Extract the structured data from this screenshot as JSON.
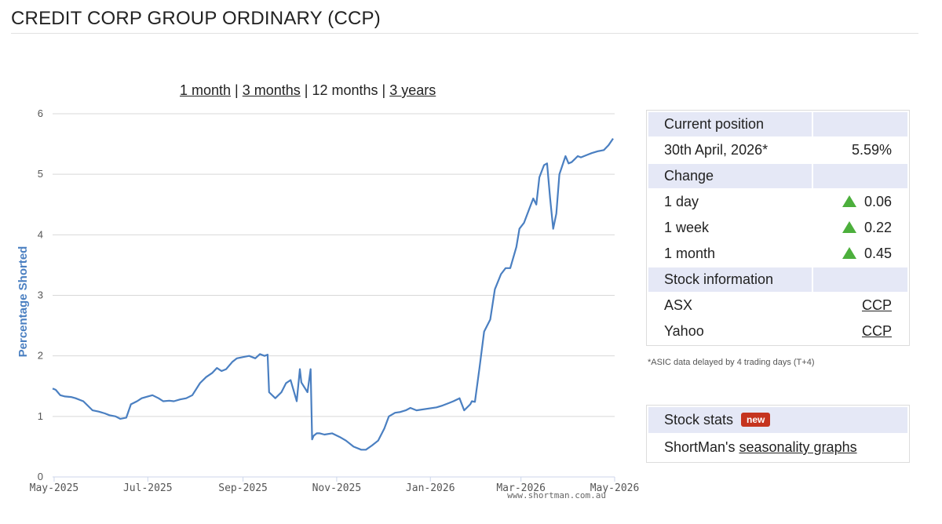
{
  "page": {
    "title": "CREDIT CORP GROUP ORDINARY (CCP)"
  },
  "range_selector": {
    "options": [
      {
        "label": "1 month",
        "link": true
      },
      {
        "label": "3 months",
        "link": true
      },
      {
        "label": "12 months",
        "link": false
      },
      {
        "label": "3 years",
        "link": true
      }
    ],
    "separator": "|"
  },
  "chart_data": {
    "type": "line",
    "title": "",
    "xlabel": "",
    "ylabel": "Percentage Shorted",
    "ylim": [
      0,
      6
    ],
    "yticks": [
      "0",
      "1",
      "2",
      "3",
      "4",
      "5",
      "6"
    ],
    "xticks": [
      "May-2025",
      "Jul-2025",
      "Sep-2025",
      "Nov-2025",
      "Jan-2026",
      "Mar-2026",
      "May-2026"
    ],
    "xlim": [
      "2025-04-30",
      "2026-05-01"
    ],
    "grid": true,
    "line_color": "#4a7fc1",
    "watermark": "www.shortman.com.au",
    "series": [
      {
        "x": [
          "2025-04-30",
          "2025-05-02",
          "2025-05-05",
          "2025-05-08",
          "2025-05-12",
          "2025-05-15",
          "2025-05-20",
          "2025-05-26",
          "2025-05-30",
          "2025-06-03",
          "2025-06-06",
          "2025-06-10",
          "2025-06-13",
          "2025-06-17",
          "2025-06-20",
          "2025-06-24",
          "2025-06-27",
          "2025-07-01",
          "2025-07-04",
          "2025-07-08",
          "2025-07-11",
          "2025-07-15",
          "2025-07-18",
          "2025-07-22",
          "2025-07-26",
          "2025-07-30",
          "2025-08-04",
          "2025-08-08",
          "2025-08-12",
          "2025-08-15",
          "2025-08-18",
          "2025-08-21",
          "2025-08-25",
          "2025-08-28",
          "2025-09-01",
          "2025-09-05",
          "2025-09-09",
          "2025-09-12",
          "2025-09-15",
          "2025-09-17",
          "2025-09-18",
          "2025-09-22",
          "2025-09-26",
          "2025-09-29",
          "2025-10-02",
          "2025-10-06",
          "2025-10-08",
          "2025-10-09",
          "2025-10-13",
          "2025-10-15",
          "2025-10-16",
          "2025-10-17",
          "2025-10-19",
          "2025-10-21",
          "2025-10-24",
          "2025-10-29",
          "2025-11-03",
          "2025-11-07",
          "2025-11-12",
          "2025-11-17",
          "2025-11-20",
          "2025-11-24",
          "2025-11-28",
          "2025-12-02",
          "2025-12-05",
          "2025-12-09",
          "2025-12-12",
          "2025-12-16",
          "2025-12-19",
          "2025-12-23",
          "2026-01-05",
          "2026-01-09",
          "2026-01-13",
          "2026-01-16",
          "2026-01-20",
          "2026-01-23",
          "2026-01-27",
          "2026-01-28",
          "2026-01-30",
          "2026-02-02",
          "2026-02-05",
          "2026-02-09",
          "2026-02-12",
          "2026-02-16",
          "2026-02-19",
          "2026-02-22",
          "2026-02-26",
          "2026-02-28",
          "2026-03-03",
          "2026-03-06",
          "2026-03-09",
          "2026-03-11",
          "2026-03-13",
          "2026-03-16",
          "2026-03-18",
          "2026-03-20",
          "2026-03-22",
          "2026-03-24",
          "2026-03-26",
          "2026-03-28",
          "2026-03-30",
          "2026-04-01",
          "2026-04-03",
          "2026-04-05",
          "2026-04-07",
          "2026-04-09",
          "2026-04-13",
          "2026-04-16",
          "2026-04-20",
          "2026-04-24",
          "2026-04-27",
          "2026-04-30"
        ],
        "y": [
          1.46,
          1.44,
          1.35,
          1.33,
          1.32,
          1.3,
          1.25,
          1.1,
          1.08,
          1.05,
          1.02,
          1.0,
          0.96,
          0.98,
          1.2,
          1.25,
          1.3,
          1.33,
          1.35,
          1.3,
          1.25,
          1.26,
          1.25,
          1.28,
          1.3,
          1.35,
          1.55,
          1.65,
          1.72,
          1.8,
          1.75,
          1.78,
          1.9,
          1.96,
          1.98,
          2.0,
          1.96,
          2.03,
          2.0,
          2.02,
          1.4,
          1.3,
          1.4,
          1.55,
          1.6,
          1.25,
          1.78,
          1.56,
          1.4,
          1.78,
          0.62,
          0.68,
          0.72,
          0.72,
          0.7,
          0.72,
          0.66,
          0.6,
          0.5,
          0.45,
          0.45,
          0.52,
          0.6,
          0.8,
          1.0,
          1.06,
          1.07,
          1.1,
          1.14,
          1.1,
          1.15,
          1.18,
          1.22,
          1.25,
          1.3,
          1.1,
          1.2,
          1.25,
          1.24,
          1.8,
          2.4,
          2.6,
          3.1,
          3.35,
          3.45,
          3.45,
          3.8,
          4.1,
          4.2,
          4.4,
          4.6,
          4.5,
          4.95,
          5.15,
          5.18,
          4.6,
          4.1,
          4.35,
          5.0,
          5.15,
          5.3,
          5.18,
          5.2,
          5.25,
          5.3,
          5.28,
          5.32,
          5.35,
          5.38,
          5.4,
          5.48,
          5.59
        ]
      }
    ]
  },
  "info": {
    "current_header": "Current position",
    "date": "30th April, 2026*",
    "current_value": "5.59%",
    "change_header": "Change",
    "changes": [
      {
        "period": "1 day",
        "value": "0.06",
        "direction": "up"
      },
      {
        "period": "1 week",
        "value": "0.22",
        "direction": "up"
      },
      {
        "period": "1 month",
        "value": "0.45",
        "direction": "up"
      }
    ],
    "stock_header": "Stock information",
    "asx_label": "ASX",
    "asx_code": "CCP",
    "yahoo_label": "Yahoo",
    "yahoo_code": "CCP",
    "note": "*ASIC data delayed by 4 trading days (T+4)",
    "up_color": "#4caf3c"
  },
  "stats": {
    "title": "Stock stats",
    "badge": "new",
    "line_prefix": "ShortMan's",
    "link": "seasonality graphs"
  }
}
